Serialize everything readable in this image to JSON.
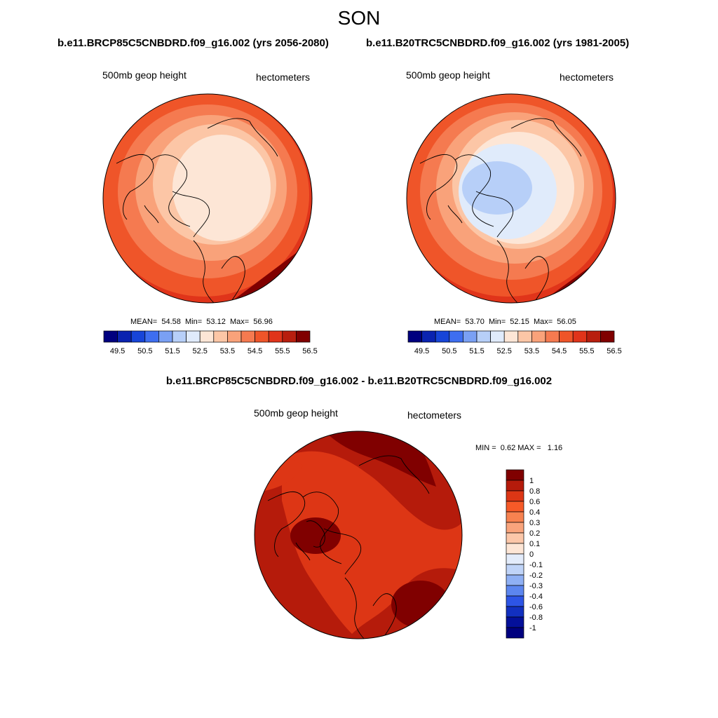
{
  "page": {
    "title": "SON"
  },
  "panels": [
    {
      "case": "b.e11.BRCP85C5CNBDRD.f09_g16.002 (yrs 2056-2080)",
      "variable": "500mb geop height",
      "units": "hectometers",
      "stats": {
        "mean_label": "MEAN=",
        "mean": "54.58",
        "min_label": "Min=",
        "min": "53.12",
        "max_label": "Max=",
        "max": "56.96"
      }
    },
    {
      "case": "b.e11.B20TRC5CNBDRD.f09_g16.002 (yrs 1981-2005)",
      "variable": "500mb geop height",
      "units": "hectometers",
      "stats": {
        "mean_label": "MEAN=",
        "mean": "53.70",
        "min_label": "Min=",
        "min": "52.15",
        "max_label": "Max=",
        "max": "56.05"
      }
    }
  ],
  "absolute_colorbar": {
    "tick_labels": [
      "49.5",
      "50.5",
      "51.5",
      "52.5",
      "53.5",
      "54.5",
      "55.5",
      "56.5"
    ],
    "colors": [
      "#00007f",
      "#0a23b0",
      "#1745d8",
      "#3e6ef0",
      "#7aa0f4",
      "#b7cff8",
      "#e0ebfb",
      "#fde6d6",
      "#fcc6a6",
      "#f9a27a",
      "#f57a50",
      "#ef5529",
      "#e0341a",
      "#b81e0e",
      "#800000"
    ]
  },
  "difference_panel": {
    "title": "b.e11.BRCP85C5CNBDRD.f09_g16.002 - b.e11.B20TRC5CNBDRD.f09_g16.002",
    "variable": "500mb geop height",
    "units": "hectometers",
    "stats": {
      "min_label": "MIN =",
      "min": "0.62",
      "max_label": "MAX =",
      "max": "1.16"
    },
    "colorbar": {
      "tick_labels": [
        "1",
        "0.8",
        "0.6",
        "0.4",
        "0.3",
        "0.2",
        "0.1",
        "0",
        "-0.1",
        "-0.2",
        "-0.3",
        "-0.4",
        "-0.6",
        "-0.8",
        "-1"
      ],
      "colors": [
        "#800000",
        "#b51b0b",
        "#dd3615",
        "#f65a28",
        "#f78250",
        "#f9a47c",
        "#fcc7a9",
        "#fde6d6",
        "#e3ecfb",
        "#c0d4f8",
        "#8fb0f4",
        "#5c86ef",
        "#2d55e6",
        "#1230c0",
        "#04109a",
        "#00007f"
      ]
    }
  }
}
